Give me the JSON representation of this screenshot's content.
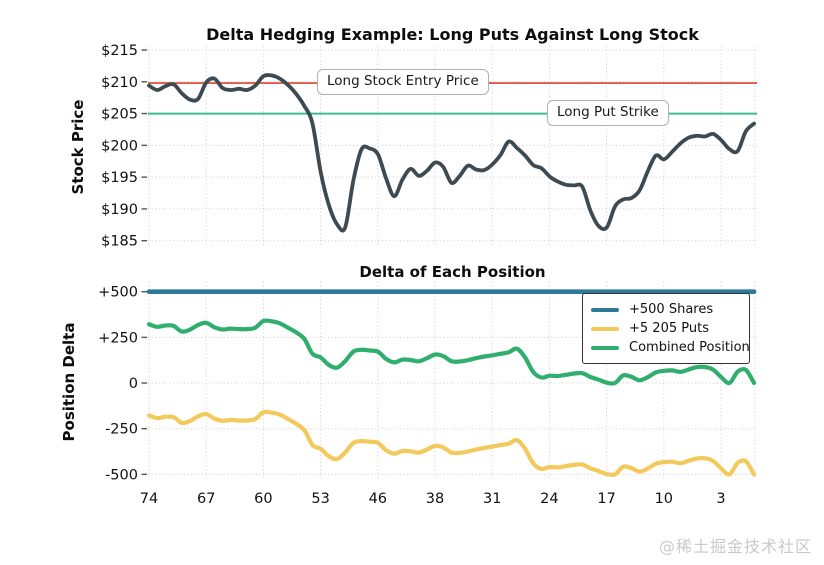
{
  "watermark": "@稀土掘金技术社区",
  "chart_data": [
    {
      "type": "line",
      "title": "Delta Hedging Example: Long Puts Against Long Stock",
      "ylabel": "Stock Price",
      "x_start": 74,
      "x_end": 0,
      "x_step": -1,
      "xticks": [
        74,
        67,
        60,
        53,
        46,
        38,
        31,
        24,
        17,
        10,
        3
      ],
      "xticks_shown": false,
      "ytick_labels": [
        "$215",
        "$210",
        "$205",
        "$200",
        "$195",
        "$190",
        "$185"
      ],
      "ytick_values": [
        215,
        210,
        205,
        200,
        195,
        190,
        185
      ],
      "ylim": [
        184.3,
        215.6
      ],
      "grid": true,
      "series": [
        {
          "name": "Stock Price",
          "color": "#3d4a52",
          "width": 3.8,
          "values": [
            209.4,
            208.7,
            209.3,
            209.6,
            208.2,
            207.2,
            207.3,
            209.9,
            210.5,
            209.0,
            208.7,
            208.9,
            208.7,
            209.4,
            210.9,
            211.0,
            210.5,
            209.5,
            208.1,
            206.2,
            203.4,
            195.8,
            190.6,
            187.6,
            187.1,
            194.5,
            199.4,
            199.5,
            198.6,
            194.8,
            192.0,
            194.6,
            196.3,
            195.2,
            196.0,
            197.3,
            196.6,
            194.1,
            195.2,
            196.8,
            196.2,
            196.1,
            197.0,
            198.5,
            200.6,
            199.6,
            198.4,
            196.9,
            196.4,
            195.1,
            194.3,
            193.8,
            193.7,
            193.5,
            189.7,
            187.3,
            187.1,
            190.4,
            191.5,
            191.7,
            192.9,
            195.9,
            198.4,
            197.8,
            199.0,
            200.3,
            201.2,
            201.5,
            201.4,
            201.8,
            200.8,
            199.4,
            199.1,
            202.2,
            203.4
          ]
        }
      ],
      "ref_lines": [
        {
          "label": "Long Stock Entry Price",
          "value": 209.8,
          "color": "#e0594b",
          "width": 1.8
        },
        {
          "label": "Long Put Strike",
          "value": 205,
          "color": "#3bbd8d",
          "width": 2
        }
      ]
    },
    {
      "type": "line",
      "title": "Delta of Each Position",
      "ylabel": "Position Delta",
      "x_start": 74,
      "x_end": 0,
      "x_step": -1,
      "xticks": [
        74,
        67,
        60,
        53,
        46,
        38,
        31,
        24,
        17,
        10,
        3
      ],
      "xticks_shown": true,
      "ytick_labels": [
        "+500",
        "+250",
        "0",
        "-250",
        "-500"
      ],
      "ytick_values": [
        500,
        250,
        0,
        -250,
        -500
      ],
      "ylim": [
        -540,
        550
      ],
      "grid": true,
      "legend_position": "upper right",
      "series": [
        {
          "name": "+500 Shares",
          "color": "#2b7a9a",
          "width": 4.6,
          "constant": 500
        },
        {
          "name": "+5 205 Puts",
          "color": "#f4c95c",
          "width": 4.2,
          "values": [
            -178,
            -192,
            -185,
            -187,
            -218,
            -208,
            -182,
            -170,
            -195,
            -207,
            -202,
            -205,
            -205,
            -197,
            -160,
            -162,
            -173,
            -197,
            -223,
            -258,
            -340,
            -360,
            -401,
            -416,
            -380,
            -328,
            -318,
            -322,
            -328,
            -368,
            -387,
            -372,
            -374,
            -381,
            -364,
            -344,
            -353,
            -381,
            -382,
            -375,
            -364,
            -355,
            -348,
            -340,
            -332,
            -312,
            -360,
            -440,
            -470,
            -460,
            -462,
            -455,
            -448,
            -446,
            -467,
            -482,
            -498,
            -500,
            -458,
            -466,
            -485,
            -468,
            -442,
            -433,
            -431,
            -439,
            -426,
            -413,
            -412,
            -427,
            -468,
            -500,
            -438,
            -428,
            -500
          ]
        },
        {
          "name": "Combined Position",
          "color": "#2fae6e",
          "width": 4.2,
          "values": [
            322,
            308,
            315,
            313,
            282,
            292,
            318,
            330,
            305,
            293,
            298,
            295,
            295,
            303,
            340,
            338,
            327,
            303,
            277,
            242,
            160,
            140,
            99,
            84,
            120,
            172,
            182,
            178,
            172,
            132,
            113,
            128,
            126,
            119,
            136,
            156,
            147,
            119,
            118,
            125,
            136,
            145,
            152,
            160,
            168,
            188,
            140,
            60,
            30,
            40,
            38,
            45,
            52,
            54,
            33,
            18,
            2,
            0,
            42,
            34,
            15,
            32,
            58,
            67,
            69,
            61,
            74,
            87,
            88,
            73,
            32,
            0,
            62,
            72,
            0
          ]
        }
      ]
    }
  ]
}
